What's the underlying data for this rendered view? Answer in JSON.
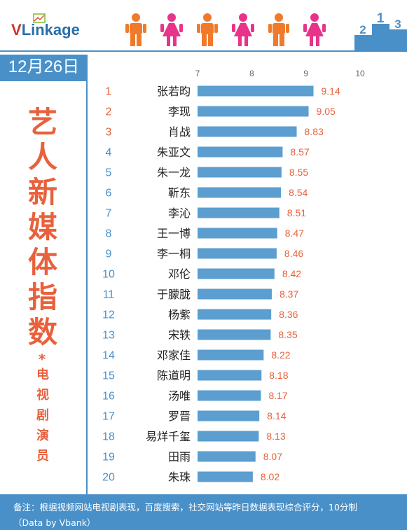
{
  "header": {
    "logo_v": "V",
    "logo_rest": "Linkage",
    "people_colors": [
      "#f07a2a",
      "#e8338a",
      "#f07a2a",
      "#e8338a",
      "#f07a2a",
      "#e8338a"
    ],
    "accent": "#4a90c8"
  },
  "date_label": "12月26日",
  "title_chars": [
    "艺",
    "人",
    "新",
    "媒",
    "体",
    "指",
    "数"
  ],
  "star": "*",
  "subtitle_chars": [
    "电",
    "视",
    "剧",
    "演",
    "员"
  ],
  "footer": {
    "note": "备注：根据视频网站电视剧表现，百度搜索，社交网站等昨日数据表现综合评分，10分制",
    "source": "（Data by Vbank）"
  },
  "chart_data": {
    "type": "bar",
    "orientation": "horizontal",
    "categories": [
      "张若昀",
      "李现",
      "肖战",
      "朱亚文",
      "朱一龙",
      "靳东",
      "李沁",
      "王一博",
      "李一桐",
      "邓伦",
      "于朦胧",
      "杨紫",
      "宋轶",
      "邓家佳",
      "陈道明",
      "汤唯",
      "罗晋",
      "易烊千玺",
      "田雨",
      "朱珠"
    ],
    "ranks": [
      "1",
      "2",
      "3",
      "4",
      "5",
      "6",
      "7",
      "8",
      "9",
      "10",
      "11",
      "12",
      "13",
      "14",
      "15",
      "16",
      "17",
      "18",
      "19",
      "20"
    ],
    "values": [
      9.14,
      9.05,
      8.83,
      8.57,
      8.55,
      8.54,
      8.51,
      8.47,
      8.46,
      8.42,
      8.37,
      8.36,
      8.35,
      8.22,
      8.18,
      8.17,
      8.14,
      8.13,
      8.07,
      8.02
    ],
    "value_labels": [
      "9.14",
      "9.05",
      "8.83",
      "8.57",
      "8.55",
      "8.54",
      "8.51",
      "8.47",
      "8.46",
      "8.42",
      "8.37",
      "8.36",
      "8.35",
      "8.22",
      "8.18",
      "8.17",
      "8.14",
      "8.13",
      "8.07",
      "8.02"
    ],
    "xlim": [
      7,
      10
    ],
    "xticks": [
      "7",
      "8",
      "9",
      "10"
    ],
    "grid": false,
    "colors": {
      "bar": "#5b9ecf",
      "rank_top": "#e8613c",
      "rank_rest": "#4a90c8",
      "value_label": "#e8613c",
      "name": "#222222",
      "tick": "#666666"
    }
  }
}
